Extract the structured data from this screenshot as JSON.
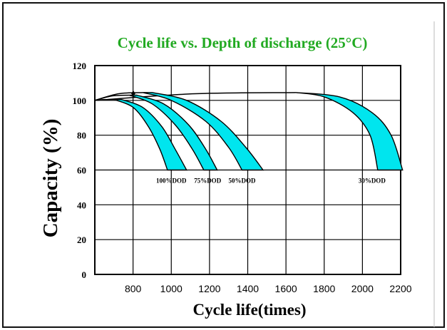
{
  "chart_data": {
    "type": "area",
    "title": "Cycle life vs. Depth of discharge (25°C)",
    "xlabel": "Cycle life(times)",
    "ylabel": "Capacity (%)",
    "xlim": [
      600,
      2200
    ],
    "ylim": [
      0,
      120
    ],
    "x_ticks": [
      "800",
      "1000",
      "1200",
      "1400",
      "1600",
      "1800",
      "2000",
      "2200"
    ],
    "y_ticks": [
      "0",
      "20",
      "40",
      "60",
      "80",
      "100",
      "120"
    ],
    "grid": true,
    "series": [
      {
        "name": "100%DOD",
        "band_start": 700,
        "outer": [
          [
            700,
            100.5
          ],
          [
            800,
            96
          ],
          [
            880,
            85
          ],
          [
            940,
            72
          ],
          [
            980,
            60
          ]
        ],
        "inner": [
          [
            740,
            100.5
          ],
          [
            850,
            96
          ],
          [
            950,
            85
          ],
          [
            1020,
            72
          ],
          [
            1080,
            60
          ]
        ]
      },
      {
        "name": "75%DOD",
        "band_start": 780,
        "outer": [
          [
            780,
            103
          ],
          [
            900,
            98
          ],
          [
            1020,
            86
          ],
          [
            1110,
            72
          ],
          [
            1170,
            60
          ]
        ],
        "inner": [
          [
            820,
            103
          ],
          [
            960,
            98
          ],
          [
            1090,
            86
          ],
          [
            1180,
            72
          ],
          [
            1240,
            60
          ]
        ]
      },
      {
        "name": "50%DOD",
        "band_start": 850,
        "outer": [
          [
            850,
            104.5
          ],
          [
            1000,
            100
          ],
          [
            1180,
            88
          ],
          [
            1300,
            73
          ],
          [
            1370,
            60
          ]
        ],
        "inner": [
          [
            900,
            104.5
          ],
          [
            1080,
            100
          ],
          [
            1260,
            88
          ],
          [
            1390,
            73
          ],
          [
            1480,
            60
          ]
        ]
      },
      {
        "name": "30%DOD",
        "band_start": 1650,
        "outer": [
          [
            1650,
            104.5
          ],
          [
            1800,
            102
          ],
          [
            1950,
            93
          ],
          [
            2040,
            80
          ],
          [
            2080,
            60
          ]
        ],
        "inner": [
          [
            1650,
            104.5
          ],
          [
            1880,
            102
          ],
          [
            2050,
            93
          ],
          [
            2150,
            80
          ],
          [
            2210,
            60
          ]
        ]
      }
    ],
    "dod_labels": [
      "100%DOD",
      "75%DOD",
      "50%DOD",
      "30%DOD"
    ],
    "band_color": "#00e5ee",
    "title_color": "#22aa22"
  }
}
